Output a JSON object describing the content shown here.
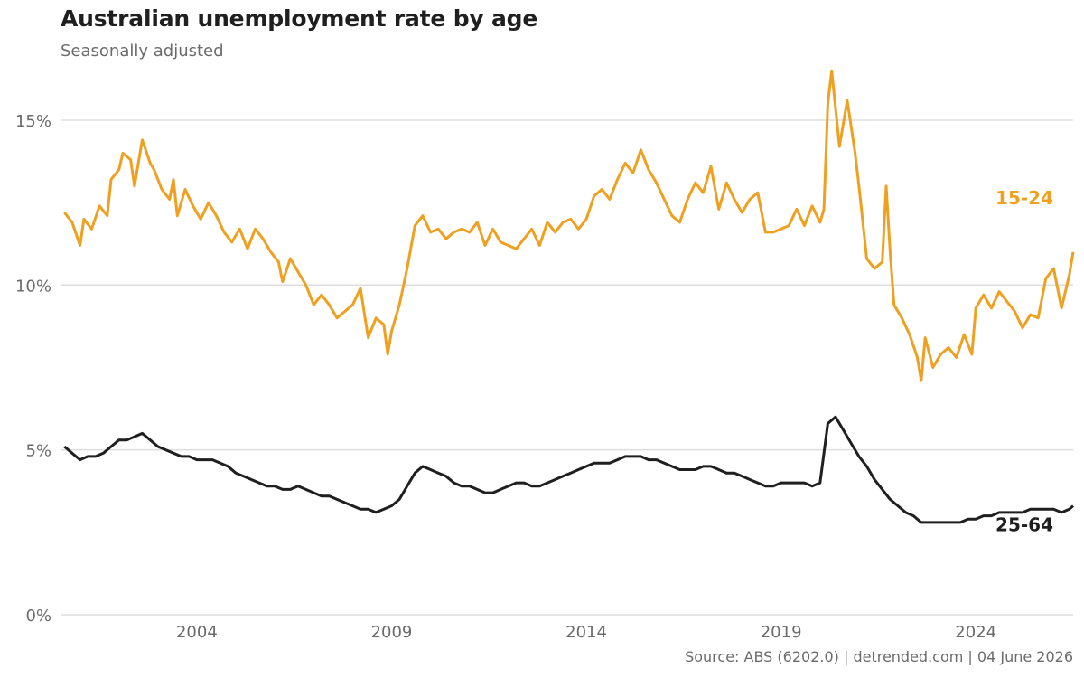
{
  "chart_data": {
    "type": "line",
    "title": "Australian unemployment rate by age",
    "subtitle": "Seasonally adjusted",
    "source": "Source: ABS (6202.0) | detrended.com | 04 June 2026",
    "xlabel": "",
    "ylabel": "",
    "xlim": [
      2000.5,
      2026.5
    ],
    "ylim": [
      0,
      17
    ],
    "x_ticks": [
      2004,
      2009,
      2014,
      2019,
      2024
    ],
    "x_tick_labels": [
      "2004",
      "2009",
      "2014",
      "2019",
      "2024"
    ],
    "y_ticks": [
      0,
      5,
      10,
      15
    ],
    "y_tick_labels": [
      "0%",
      "5%",
      "10%",
      "15%"
    ],
    "grid": "horizontal",
    "legend": "none (direct labels at line ends)",
    "series": [
      {
        "name": "15-24",
        "color": "#f0a020",
        "points": [
          [
            2000.6,
            12.2
          ],
          [
            2000.8,
            11.9
          ],
          [
            2001.0,
            11.2
          ],
          [
            2001.1,
            12.0
          ],
          [
            2001.3,
            11.7
          ],
          [
            2001.5,
            12.4
          ],
          [
            2001.7,
            12.1
          ],
          [
            2001.8,
            13.2
          ],
          [
            2002.0,
            13.5
          ],
          [
            2002.1,
            14.0
          ],
          [
            2002.3,
            13.8
          ],
          [
            2002.4,
            13.0
          ],
          [
            2002.6,
            14.4
          ],
          [
            2002.8,
            13.7
          ],
          [
            2002.9,
            13.5
          ],
          [
            2003.1,
            12.9
          ],
          [
            2003.3,
            12.6
          ],
          [
            2003.4,
            13.2
          ],
          [
            2003.5,
            12.1
          ],
          [
            2003.7,
            12.9
          ],
          [
            2003.9,
            12.4
          ],
          [
            2004.1,
            12.0
          ],
          [
            2004.3,
            12.5
          ],
          [
            2004.5,
            12.1
          ],
          [
            2004.7,
            11.6
          ],
          [
            2004.9,
            11.3
          ],
          [
            2005.1,
            11.7
          ],
          [
            2005.3,
            11.1
          ],
          [
            2005.5,
            11.7
          ],
          [
            2005.7,
            11.4
          ],
          [
            2005.9,
            11.0
          ],
          [
            2006.1,
            10.7
          ],
          [
            2006.2,
            10.1
          ],
          [
            2006.4,
            10.8
          ],
          [
            2006.6,
            10.4
          ],
          [
            2006.8,
            10.0
          ],
          [
            2007.0,
            9.4
          ],
          [
            2007.2,
            9.7
          ],
          [
            2007.4,
            9.4
          ],
          [
            2007.6,
            9.0
          ],
          [
            2007.8,
            9.2
          ],
          [
            2008.0,
            9.4
          ],
          [
            2008.2,
            9.9
          ],
          [
            2008.4,
            8.4
          ],
          [
            2008.6,
            9.0
          ],
          [
            2008.8,
            8.8
          ],
          [
            2008.9,
            7.9
          ],
          [
            2009.0,
            8.6
          ],
          [
            2009.2,
            9.4
          ],
          [
            2009.4,
            10.5
          ],
          [
            2009.6,
            11.8
          ],
          [
            2009.8,
            12.1
          ],
          [
            2010.0,
            11.6
          ],
          [
            2010.2,
            11.7
          ],
          [
            2010.4,
            11.4
          ],
          [
            2010.6,
            11.6
          ],
          [
            2010.8,
            11.7
          ],
          [
            2011.0,
            11.6
          ],
          [
            2011.2,
            11.9
          ],
          [
            2011.4,
            11.2
          ],
          [
            2011.6,
            11.7
          ],
          [
            2011.8,
            11.3
          ],
          [
            2012.0,
            11.2
          ],
          [
            2012.2,
            11.1
          ],
          [
            2012.4,
            11.4
          ],
          [
            2012.6,
            11.7
          ],
          [
            2012.8,
            11.2
          ],
          [
            2013.0,
            11.9
          ],
          [
            2013.2,
            11.6
          ],
          [
            2013.4,
            11.9
          ],
          [
            2013.6,
            12.0
          ],
          [
            2013.8,
            11.7
          ],
          [
            2014.0,
            12.0
          ],
          [
            2014.2,
            12.7
          ],
          [
            2014.4,
            12.9
          ],
          [
            2014.6,
            12.6
          ],
          [
            2014.8,
            13.2
          ],
          [
            2015.0,
            13.7
          ],
          [
            2015.2,
            13.4
          ],
          [
            2015.4,
            14.1
          ],
          [
            2015.6,
            13.5
          ],
          [
            2015.8,
            13.1
          ],
          [
            2016.0,
            12.6
          ],
          [
            2016.2,
            12.1
          ],
          [
            2016.4,
            11.9
          ],
          [
            2016.6,
            12.6
          ],
          [
            2016.8,
            13.1
          ],
          [
            2017.0,
            12.8
          ],
          [
            2017.2,
            13.6
          ],
          [
            2017.4,
            12.3
          ],
          [
            2017.6,
            13.1
          ],
          [
            2017.8,
            12.6
          ],
          [
            2018.0,
            12.2
          ],
          [
            2018.2,
            12.6
          ],
          [
            2018.4,
            12.8
          ],
          [
            2018.6,
            11.6
          ],
          [
            2018.8,
            11.6
          ],
          [
            2019.0,
            11.7
          ],
          [
            2019.2,
            11.8
          ],
          [
            2019.4,
            12.3
          ],
          [
            2019.6,
            11.8
          ],
          [
            2019.8,
            12.4
          ],
          [
            2020.0,
            11.9
          ],
          [
            2020.1,
            12.3
          ],
          [
            2020.2,
            15.5
          ],
          [
            2020.3,
            16.5
          ],
          [
            2020.5,
            14.2
          ],
          [
            2020.7,
            15.6
          ],
          [
            2020.9,
            14.0
          ],
          [
            2021.0,
            13.0
          ],
          [
            2021.2,
            10.8
          ],
          [
            2021.4,
            10.5
          ],
          [
            2021.6,
            10.7
          ],
          [
            2021.7,
            13.0
          ],
          [
            2021.8,
            11.0
          ],
          [
            2021.9,
            9.4
          ],
          [
            2022.1,
            9.0
          ],
          [
            2022.3,
            8.5
          ],
          [
            2022.5,
            7.8
          ],
          [
            2022.6,
            7.1
          ],
          [
            2022.7,
            8.4
          ],
          [
            2022.9,
            7.5
          ],
          [
            2023.1,
            7.9
          ],
          [
            2023.3,
            8.1
          ],
          [
            2023.5,
            7.8
          ],
          [
            2023.7,
            8.5
          ],
          [
            2023.9,
            7.9
          ],
          [
            2024.0,
            9.3
          ],
          [
            2024.2,
            9.7
          ],
          [
            2024.4,
            9.3
          ],
          [
            2024.6,
            9.8
          ],
          [
            2024.8,
            9.5
          ],
          [
            2025.0,
            9.2
          ],
          [
            2025.2,
            8.7
          ],
          [
            2025.4,
            9.1
          ],
          [
            2025.6,
            9.0
          ],
          [
            2025.8,
            10.2
          ],
          [
            2026.0,
            10.5
          ],
          [
            2026.2,
            9.3
          ],
          [
            2026.4,
            10.3
          ],
          [
            2026.5,
            11.0
          ]
        ]
      },
      {
        "name": "25-64",
        "color": "#1f1f1f",
        "points": [
          [
            2000.6,
            5.1
          ],
          [
            2000.8,
            4.9
          ],
          [
            2001.0,
            4.7
          ],
          [
            2001.2,
            4.8
          ],
          [
            2001.4,
            4.8
          ],
          [
            2001.6,
            4.9
          ],
          [
            2001.8,
            5.1
          ],
          [
            2002.0,
            5.3
          ],
          [
            2002.2,
            5.3
          ],
          [
            2002.4,
            5.4
          ],
          [
            2002.6,
            5.5
          ],
          [
            2002.8,
            5.3
          ],
          [
            2003.0,
            5.1
          ],
          [
            2003.2,
            5.0
          ],
          [
            2003.4,
            4.9
          ],
          [
            2003.6,
            4.8
          ],
          [
            2003.8,
            4.8
          ],
          [
            2004.0,
            4.7
          ],
          [
            2004.2,
            4.7
          ],
          [
            2004.4,
            4.7
          ],
          [
            2004.6,
            4.6
          ],
          [
            2004.8,
            4.5
          ],
          [
            2005.0,
            4.3
          ],
          [
            2005.2,
            4.2
          ],
          [
            2005.4,
            4.1
          ],
          [
            2005.6,
            4.0
          ],
          [
            2005.8,
            3.9
          ],
          [
            2006.0,
            3.9
          ],
          [
            2006.2,
            3.8
          ],
          [
            2006.4,
            3.8
          ],
          [
            2006.6,
            3.9
          ],
          [
            2006.8,
            3.8
          ],
          [
            2007.0,
            3.7
          ],
          [
            2007.2,
            3.6
          ],
          [
            2007.4,
            3.6
          ],
          [
            2007.6,
            3.5
          ],
          [
            2007.8,
            3.4
          ],
          [
            2008.0,
            3.3
          ],
          [
            2008.2,
            3.2
          ],
          [
            2008.4,
            3.2
          ],
          [
            2008.6,
            3.1
          ],
          [
            2008.8,
            3.2
          ],
          [
            2009.0,
            3.3
          ],
          [
            2009.2,
            3.5
          ],
          [
            2009.4,
            3.9
          ],
          [
            2009.6,
            4.3
          ],
          [
            2009.8,
            4.5
          ],
          [
            2010.0,
            4.4
          ],
          [
            2010.2,
            4.3
          ],
          [
            2010.4,
            4.2
          ],
          [
            2010.6,
            4.0
          ],
          [
            2010.8,
            3.9
          ],
          [
            2011.0,
            3.9
          ],
          [
            2011.2,
            3.8
          ],
          [
            2011.4,
            3.7
          ],
          [
            2011.6,
            3.7
          ],
          [
            2011.8,
            3.8
          ],
          [
            2012.0,
            3.9
          ],
          [
            2012.2,
            4.0
          ],
          [
            2012.4,
            4.0
          ],
          [
            2012.6,
            3.9
          ],
          [
            2012.8,
            3.9
          ],
          [
            2013.0,
            4.0
          ],
          [
            2013.2,
            4.1
          ],
          [
            2013.4,
            4.2
          ],
          [
            2013.6,
            4.3
          ],
          [
            2013.8,
            4.4
          ],
          [
            2014.0,
            4.5
          ],
          [
            2014.2,
            4.6
          ],
          [
            2014.4,
            4.6
          ],
          [
            2014.6,
            4.6
          ],
          [
            2014.8,
            4.7
          ],
          [
            2015.0,
            4.8
          ],
          [
            2015.2,
            4.8
          ],
          [
            2015.4,
            4.8
          ],
          [
            2015.6,
            4.7
          ],
          [
            2015.8,
            4.7
          ],
          [
            2016.0,
            4.6
          ],
          [
            2016.2,
            4.5
          ],
          [
            2016.4,
            4.4
          ],
          [
            2016.6,
            4.4
          ],
          [
            2016.8,
            4.4
          ],
          [
            2017.0,
            4.5
          ],
          [
            2017.2,
            4.5
          ],
          [
            2017.4,
            4.4
          ],
          [
            2017.6,
            4.3
          ],
          [
            2017.8,
            4.3
          ],
          [
            2018.0,
            4.2
          ],
          [
            2018.2,
            4.1
          ],
          [
            2018.4,
            4.0
          ],
          [
            2018.6,
            3.9
          ],
          [
            2018.8,
            3.9
          ],
          [
            2019.0,
            4.0
          ],
          [
            2019.2,
            4.0
          ],
          [
            2019.4,
            4.0
          ],
          [
            2019.6,
            4.0
          ],
          [
            2019.8,
            3.9
          ],
          [
            2020.0,
            4.0
          ],
          [
            2020.2,
            5.8
          ],
          [
            2020.4,
            6.0
          ],
          [
            2020.6,
            5.6
          ],
          [
            2020.8,
            5.2
          ],
          [
            2021.0,
            4.8
          ],
          [
            2021.2,
            4.5
          ],
          [
            2021.4,
            4.1
          ],
          [
            2021.6,
            3.8
          ],
          [
            2021.8,
            3.5
          ],
          [
            2022.0,
            3.3
          ],
          [
            2022.2,
            3.1
          ],
          [
            2022.4,
            3.0
          ],
          [
            2022.6,
            2.8
          ],
          [
            2022.8,
            2.8
          ],
          [
            2023.0,
            2.8
          ],
          [
            2023.2,
            2.8
          ],
          [
            2023.4,
            2.8
          ],
          [
            2023.6,
            2.8
          ],
          [
            2023.8,
            2.9
          ],
          [
            2024.0,
            2.9
          ],
          [
            2024.2,
            3.0
          ],
          [
            2024.4,
            3.0
          ],
          [
            2024.6,
            3.1
          ],
          [
            2024.8,
            3.1
          ],
          [
            2025.0,
            3.1
          ],
          [
            2025.2,
            3.1
          ],
          [
            2025.4,
            3.2
          ],
          [
            2025.6,
            3.2
          ],
          [
            2025.8,
            3.2
          ],
          [
            2026.0,
            3.2
          ],
          [
            2026.2,
            3.1
          ],
          [
            2026.4,
            3.2
          ],
          [
            2026.5,
            3.3
          ]
        ]
      }
    ]
  }
}
